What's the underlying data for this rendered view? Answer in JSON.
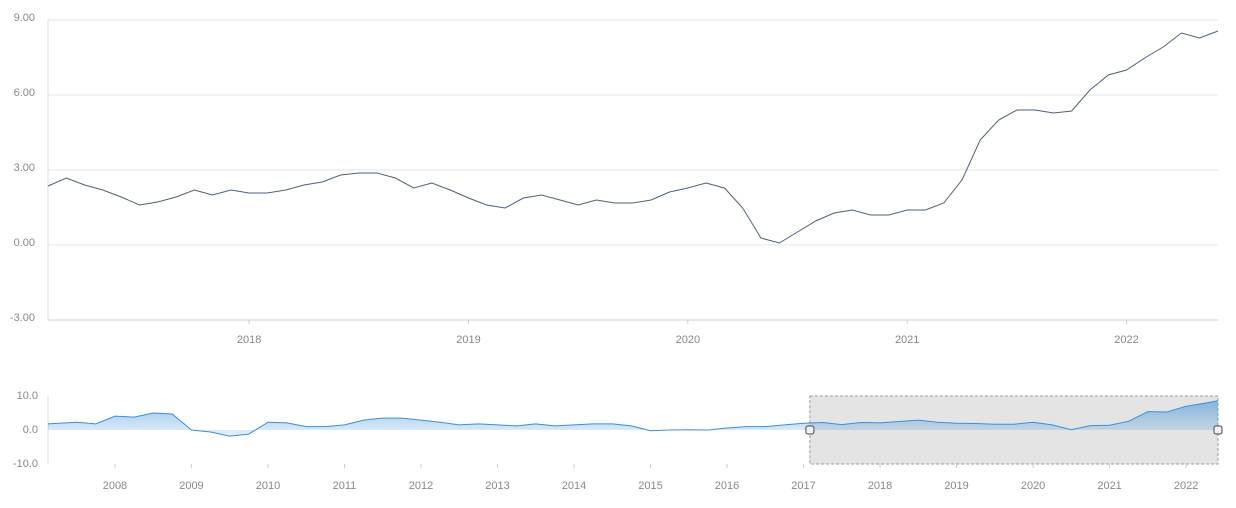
{
  "chart_data": [
    {
      "type": "line",
      "color": "#4e5f80",
      "grid": true,
      "x": [
        2017.083,
        2017.167,
        2017.25,
        2017.333,
        2017.417,
        2017.5,
        2017.583,
        2017.667,
        2017.75,
        2017.833,
        2017.917,
        2018,
        2018.083,
        2018.167,
        2018.25,
        2018.333,
        2018.417,
        2018.5,
        2018.583,
        2018.667,
        2018.75,
        2018.833,
        2018.917,
        2019,
        2019.083,
        2019.167,
        2019.25,
        2019.333,
        2019.417,
        2019.5,
        2019.583,
        2019.667,
        2019.75,
        2019.833,
        2019.917,
        2020,
        2020.083,
        2020.167,
        2020.25,
        2020.333,
        2020.417,
        2020.5,
        2020.583,
        2020.667,
        2020.75,
        2020.833,
        2020.917,
        2021,
        2021.083,
        2021.167,
        2021.25,
        2021.333,
        2021.417,
        2021.5,
        2021.583,
        2021.667,
        2021.75,
        2021.833,
        2021.917,
        2022,
        2022.083,
        2022.167,
        2022.25,
        2022.333,
        2022.417
      ],
      "values": [
        2.36,
        2.68,
        2.4,
        2.2,
        1.92,
        1.6,
        1.72,
        1.92,
        2.2,
        2.0,
        2.2,
        2.08,
        2.08,
        2.2,
        2.4,
        2.52,
        2.8,
        2.88,
        2.88,
        2.68,
        2.28,
        2.48,
        2.2,
        1.88,
        1.6,
        1.48,
        1.88,
        2.0,
        1.8,
        1.6,
        1.8,
        1.68,
        1.68,
        1.8,
        2.12,
        2.28,
        2.48,
        2.28,
        1.48,
        0.28,
        0.08,
        0.52,
        0.96,
        1.28,
        1.4,
        1.2,
        1.2,
        1.4,
        1.4,
        1.68,
        2.6,
        4.2,
        5.0,
        5.4,
        5.4,
        5.28,
        5.36,
        6.2,
        6.8,
        7.0,
        7.48,
        7.92,
        8.48,
        8.28,
        8.56
      ],
      "xlim": [
        2017.083,
        2022.417
      ],
      "xticks": [
        2018,
        2019,
        2020,
        2021,
        2022
      ],
      "ylim": [
        -3,
        9
      ],
      "yticks": [
        {
          "value": 9,
          "label": "9.00"
        },
        {
          "value": 6,
          "label": "6.00"
        },
        {
          "value": 3,
          "label": "3.00"
        },
        {
          "value": 0,
          "label": "0.00"
        },
        {
          "value": -3,
          "label": "-3.00"
        }
      ]
    },
    {
      "type": "area",
      "color": "#3b8fd9",
      "grid": false,
      "x": [
        2007.125,
        2007.5,
        2007.75,
        2008,
        2008.25,
        2008.5,
        2008.75,
        2009,
        2009.25,
        2009.5,
        2009.75,
        2010,
        2010.25,
        2010.5,
        2010.75,
        2011,
        2011.25,
        2011.5,
        2011.75,
        2012,
        2012.25,
        2012.5,
        2012.75,
        2013,
        2013.25,
        2013.5,
        2013.75,
        2014,
        2014.25,
        2014.5,
        2014.75,
        2015,
        2015.25,
        2015.5,
        2015.75,
        2016,
        2016.25,
        2016.5,
        2016.75,
        2017,
        2017.25,
        2017.5,
        2017.75,
        2018,
        2018.25,
        2018.5,
        2018.75,
        2019,
        2019.25,
        2019.5,
        2019.75,
        2020,
        2020.25,
        2020.5,
        2020.75,
        2021,
        2021.25,
        2021.5,
        2021.75,
        2022,
        2022.25,
        2022.417
      ],
      "values": [
        1.8,
        2.3,
        1.8,
        4.1,
        3.8,
        5.0,
        4.7,
        0,
        -0.6,
        -1.8,
        -1.2,
        2.3,
        2.1,
        1.0,
        1.0,
        1.5,
        2.9,
        3.5,
        3.5,
        2.9,
        2.3,
        1.5,
        1.8,
        1.5,
        1.2,
        1.8,
        1.2,
        1.5,
        1.8,
        1.8,
        1.2,
        -0.2,
        0,
        0.1,
        0,
        0.6,
        1.0,
        1.0,
        1.5,
        2.0,
        2.2,
        1.6,
        2.2,
        2.1,
        2.5,
        2.9,
        2.3,
        2.0,
        1.9,
        1.7,
        1.7,
        2.3,
        1.5,
        0.1,
        1.3,
        1.4,
        2.6,
        5.4,
        5.3,
        7.0,
        7.9,
        8.6
      ],
      "xlim": [
        2007.125,
        2022.417
      ],
      "xticks": [
        2008,
        2009,
        2010,
        2011,
        2012,
        2013,
        2014,
        2015,
        2016,
        2017,
        2018,
        2019,
        2020,
        2021,
        2022
      ],
      "ylim": [
        -10,
        10
      ],
      "yticks": [
        {
          "value": 10,
          "label": "10.0"
        },
        {
          "value": 0,
          "label": "0.0"
        },
        {
          "value": -10,
          "label": "-10.0"
        }
      ]
    }
  ]
}
